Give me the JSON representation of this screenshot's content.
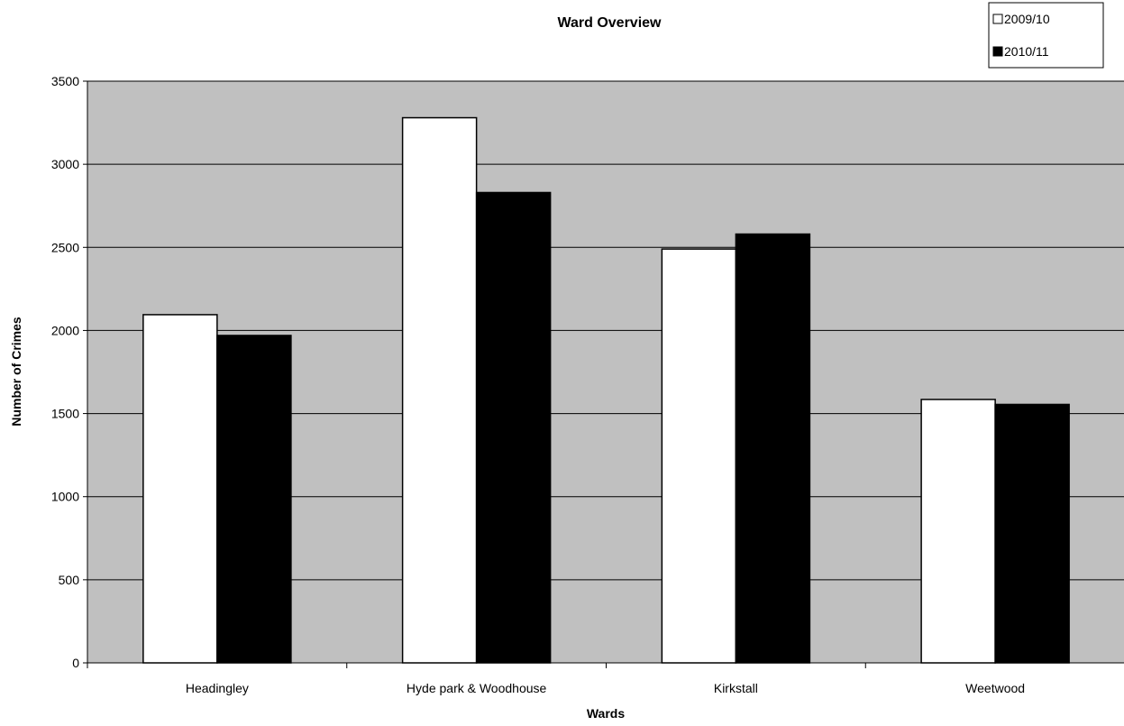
{
  "chart_data": {
    "type": "bar",
    "title": "Ward Overview",
    "xlabel": "Wards",
    "ylabel": "Number of Crimes",
    "categories": [
      "Headingley",
      "Hyde park & Woodhouse",
      "Kirkstall",
      "Weetwood"
    ],
    "series": [
      {
        "name": "2009/10",
        "values": [
          2095,
          3280,
          2490,
          1585
        ],
        "color": "#ffffff"
      },
      {
        "name": "2010/11",
        "values": [
          1970,
          2830,
          2580,
          1555
        ],
        "color": "#000000"
      }
    ],
    "ylim": [
      0,
      3500
    ],
    "yticks": [
      0,
      500,
      1000,
      1500,
      2000,
      2500,
      3000,
      3500
    ],
    "grid": true,
    "plot_background": "#c0c0c0",
    "legend_position": "top-right"
  }
}
